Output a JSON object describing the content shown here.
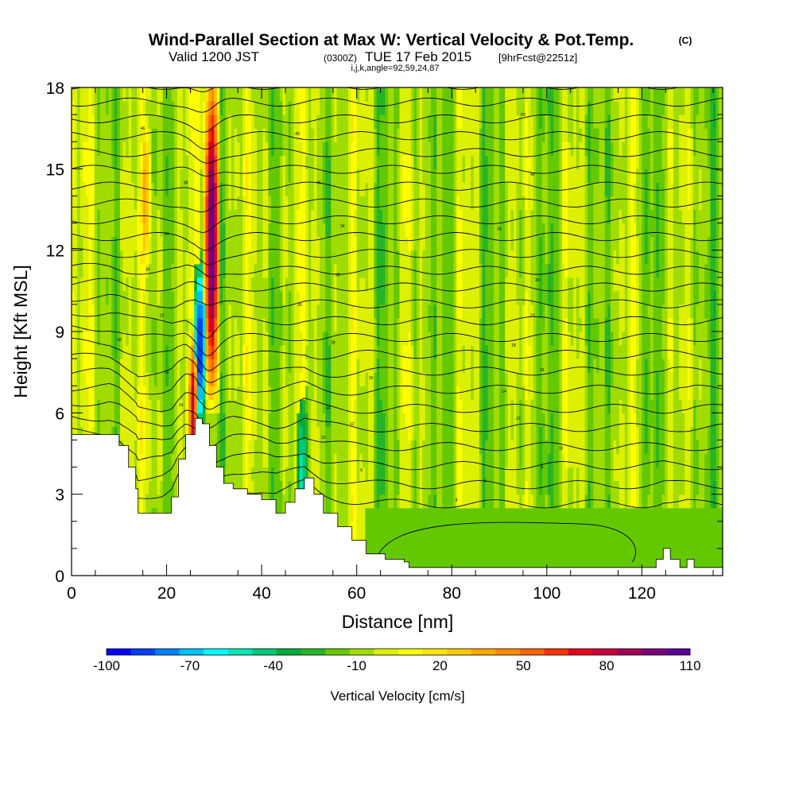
{
  "header": {
    "title": "Wind-Parallel Section at Max W: Vertical Velocity & Pot.Temp.",
    "title_mark": "(C)",
    "subtitle_pre": "Valid 1200 JST",
    "subtitle_z": "(0300Z)",
    "subtitle_date": "TUE 17 Feb 2015",
    "subtitle_fcst": "[9hrFcst@2251z]",
    "params": "i,j,k,angle=92,59,24,87"
  },
  "chart_data": {
    "type": "heatmap",
    "xlabel": "Distance [nm]",
    "ylabel": "Height [Kft MSL]",
    "xlim": [
      0,
      137
    ],
    "ylim": [
      0,
      18
    ],
    "xticks": [
      "0",
      "20",
      "40",
      "60",
      "80",
      "100",
      "120"
    ],
    "yticks": [
      "0",
      "3",
      "6",
      "9",
      "12",
      "15",
      "18"
    ],
    "colorbar": {
      "label": "Vertical Velocity [cm/s]",
      "tick_labels": [
        "-100",
        "-70",
        "-40",
        "-10",
        "20",
        "50",
        "80",
        "110"
      ],
      "range": [
        -100,
        110
      ],
      "step": 10,
      "colors": [
        "#0000ff",
        "#0040ff",
        "#0080ff",
        "#00c0ff",
        "#00ffff",
        "#00e6b4",
        "#00c878",
        "#00aa3c",
        "#28b428",
        "#64c800",
        "#a0dc00",
        "#dcf000",
        "#ffff00",
        "#ffe600",
        "#ffc800",
        "#ffaa00",
        "#ff8c00",
        "#ff6400",
        "#ff3200",
        "#e6001e",
        "#c8003c",
        "#a0005a",
        "#7d0078",
        "#5a0096"
      ]
    },
    "terrain_kft": [
      [
        0,
        5.2
      ],
      [
        8,
        5.2
      ],
      [
        10,
        4.8
      ],
      [
        12,
        4.0
      ],
      [
        13.5,
        3.2
      ],
      [
        14,
        2.3
      ],
      [
        19,
        2.3
      ],
      [
        21,
        2.9
      ],
      [
        22.5,
        4.3
      ],
      [
        24,
        5.2
      ],
      [
        26,
        5.8
      ],
      [
        27.5,
        5.6
      ],
      [
        29,
        4.8
      ],
      [
        30.5,
        4.0
      ],
      [
        32,
        3.4
      ],
      [
        34,
        3.2
      ],
      [
        37,
        3.0
      ],
      [
        40,
        2.8
      ],
      [
        43,
        2.3
      ],
      [
        45,
        2.7
      ],
      [
        47,
        3.2
      ],
      [
        49,
        3.6
      ],
      [
        51,
        3.0
      ],
      [
        53,
        2.3
      ],
      [
        56,
        1.8
      ],
      [
        59,
        1.3
      ],
      [
        62,
        0.8
      ],
      [
        66,
        0.6
      ],
      [
        70,
        0.5
      ],
      [
        71,
        0.3
      ],
      [
        120,
        0.3
      ],
      [
        123,
        0.6
      ],
      [
        124.5,
        1.0
      ],
      [
        126,
        0.6
      ],
      [
        128,
        0.3
      ],
      [
        129.5,
        0.6
      ],
      [
        131,
        0.3
      ],
      [
        137,
        0.3
      ]
    ],
    "updraft_maxima": [
      {
        "x": 29.5,
        "z_center": 12.5,
        "w": 110
      },
      {
        "x": 25.5,
        "z_center": 6.0,
        "w": 75
      },
      {
        "x": 15.5,
        "z_center": 14.0,
        "w": 45
      }
    ],
    "downdraft_maxima": [
      {
        "x": 27.0,
        "z_center": 8.5,
        "w": -75
      },
      {
        "x": 48.5,
        "z_center": 3.7,
        "w": -35
      }
    ],
    "isentrope_labels": [
      {
        "x": 15,
        "z": 16.5,
        "text": "46"
      },
      {
        "x": 24,
        "z": 14.5,
        "text": "38"
      },
      {
        "x": 20,
        "z": 12.6,
        "text": "34"
      },
      {
        "x": 16,
        "z": 11.3,
        "text": "30"
      },
      {
        "x": 19,
        "z": 9.6,
        "text": "22"
      },
      {
        "x": 10,
        "z": 8.7,
        "text": "18"
      },
      {
        "x": 20,
        "z": 7.5,
        "text": "16"
      },
      {
        "x": 23,
        "z": 6.3,
        "text": "14"
      },
      {
        "x": 47.5,
        "z": 16.3,
        "text": "40"
      },
      {
        "x": 52,
        "z": 14.5,
        "text": "36"
      },
      {
        "x": 57,
        "z": 12.9,
        "text": "34"
      },
      {
        "x": 56,
        "z": 11.1,
        "text": "30"
      },
      {
        "x": 48,
        "z": 10.0,
        "text": "26"
      },
      {
        "x": 55,
        "z": 8.6,
        "text": "18"
      },
      {
        "x": 63,
        "z": 7.3,
        "text": "16"
      },
      {
        "x": 54,
        "z": 6.2,
        "text": "14"
      },
      {
        "x": 59,
        "z": 5.6,
        "text": "12"
      },
      {
        "x": 53,
        "z": 5.1,
        "text": "10"
      },
      {
        "x": 50,
        "z": 4.4,
        "text": "8"
      },
      {
        "x": 61,
        "z": 3.9,
        "text": "6"
      },
      {
        "x": 81,
        "z": 2.8,
        "text": "4"
      },
      {
        "x": 95,
        "z": 17.0,
        "text": "50"
      },
      {
        "x": 97,
        "z": 14.8,
        "text": "40"
      },
      {
        "x": 90,
        "z": 12.8,
        "text": "34"
      },
      {
        "x": 98,
        "z": 10.9,
        "text": "30"
      },
      {
        "x": 97,
        "z": 9.6,
        "text": "22"
      },
      {
        "x": 93,
        "z": 8.5,
        "text": "18"
      },
      {
        "x": 99,
        "z": 7.6,
        "text": "16"
      },
      {
        "x": 91,
        "z": 6.8,
        "text": "14"
      },
      {
        "x": 94,
        "z": 5.8,
        "text": "12"
      },
      {
        "x": 103,
        "z": 4.7,
        "text": "10"
      },
      {
        "x": 99,
        "z": 4.0,
        "text": "8"
      },
      {
        "x": 87,
        "z": 3.5,
        "text": "6"
      }
    ]
  }
}
